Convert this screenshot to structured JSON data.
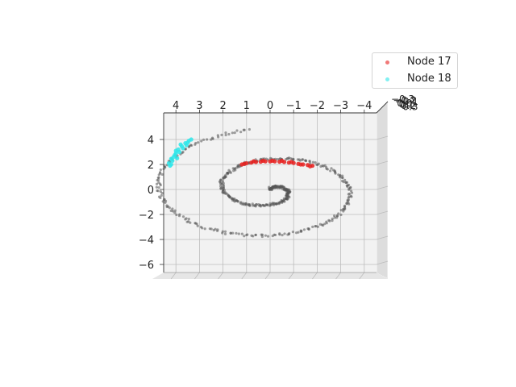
{
  "chart_data": {
    "type": "scatter",
    "projection": "3d",
    "title": "",
    "xlabel": "",
    "ylabel": "",
    "zlabel": "",
    "x_ticks": [
      "4",
      "3",
      "2",
      "1",
      "0",
      "−1",
      "−2",
      "−3",
      "−4"
    ],
    "y_ticks": [
      "4",
      "2",
      "0",
      "−2",
      "−4",
      "−6"
    ],
    "z_ticks": [
      "−0.3",
      "−0.2",
      "−0.1",
      "0.0",
      "0.1",
      "0.2",
      "0.3"
    ],
    "xlim": [
      4.6,
      -4.6
    ],
    "ylim": [
      -6.8,
      5.8
    ],
    "grid": true,
    "legend_position": "top-right",
    "colors": {
      "background_points": "#555555",
      "node17": "#e8201e",
      "node18": "#2ee6ea",
      "pane": "#f2f2f2",
      "grid": "#bdbdbd"
    },
    "spiral": {
      "description": "Archimedean spiral of grey points, r grows with angle",
      "t_range": [
        0.0,
        12.4
      ],
      "radius_scale": 0.39,
      "x_scale": 1.1,
      "y_scale": 1.0
    },
    "series": [
      {
        "name": "Node 17",
        "color": "#e8201e",
        "points": [
          [
            1.2,
            2.0
          ],
          [
            1.0,
            2.1
          ],
          [
            0.8,
            2.15
          ],
          [
            0.6,
            2.2
          ],
          [
            0.4,
            2.22
          ],
          [
            0.2,
            2.25
          ],
          [
            0.0,
            2.25
          ],
          [
            -0.2,
            2.25
          ],
          [
            -0.4,
            2.22
          ],
          [
            -0.6,
            2.2
          ],
          [
            -0.8,
            2.15
          ],
          [
            -1.0,
            2.12
          ],
          [
            -1.2,
            2.05
          ],
          [
            -1.4,
            2.0
          ],
          [
            -1.6,
            1.95
          ],
          [
            -1.8,
            1.9
          ],
          [
            1.1,
            2.05
          ],
          [
            0.3,
            2.3
          ],
          [
            -0.5,
            2.3
          ],
          [
            -1.3,
            2.0
          ],
          [
            -1.7,
            1.85
          ],
          [
            0.7,
            2.25
          ],
          [
            -0.1,
            2.3
          ],
          [
            -0.9,
            2.2
          ]
        ]
      },
      {
        "name": "Node 18",
        "color": "#2ee6ea",
        "points": [
          [
            4.2,
            2.0
          ],
          [
            4.15,
            2.3
          ],
          [
            4.1,
            2.6
          ],
          [
            4.0,
            2.9
          ],
          [
            3.9,
            3.2
          ],
          [
            3.75,
            3.45
          ],
          [
            3.6,
            3.7
          ],
          [
            3.45,
            3.9
          ],
          [
            4.25,
            1.9
          ],
          [
            4.05,
            2.75
          ],
          [
            3.85,
            3.0
          ],
          [
            3.7,
            3.3
          ],
          [
            3.55,
            3.55
          ],
          [
            3.35,
            4.0
          ],
          [
            4.3,
            2.1
          ],
          [
            3.95,
            2.5
          ],
          [
            3.8,
            3.6
          ],
          [
            4.0,
            3.1
          ],
          [
            4.2,
            2.45
          ],
          [
            3.5,
            3.75
          ]
        ]
      }
    ]
  }
}
